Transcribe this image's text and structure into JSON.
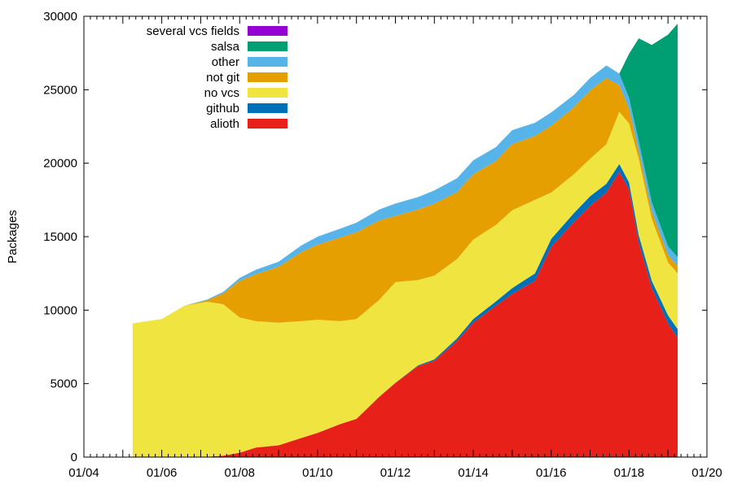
{
  "chart_data": {
    "type": "area",
    "stacked": true,
    "ylabel": "Packages",
    "xlabel": "",
    "ylim": [
      0,
      30000
    ],
    "xlim": [
      "2004-01",
      "2020-01"
    ],
    "y_ticks": [
      0,
      5000,
      10000,
      15000,
      20000,
      25000,
      30000
    ],
    "x_ticks": [
      "01/04",
      "01/06",
      "01/08",
      "01/10",
      "01/12",
      "01/14",
      "01/16",
      "01/18",
      "01/20"
    ],
    "grid": false,
    "legend_position": "top-left",
    "x": [
      "2005-04",
      "2006-01",
      "2006-08",
      "2007-03",
      "2007-08",
      "2008-01",
      "2008-06",
      "2009-01",
      "2009-08",
      "2010-01",
      "2010-08",
      "2011-01",
      "2011-08",
      "2012-01",
      "2012-08",
      "2013-01",
      "2013-08",
      "2014-01",
      "2014-08",
      "2015-01",
      "2015-08",
      "2016-01",
      "2016-08",
      "2017-01",
      "2017-06",
      "2017-10",
      "2018-01",
      "2018-04",
      "2018-08",
      "2019-01",
      "2019-04"
    ],
    "series": [
      {
        "name": "alioth",
        "color": "#e8201a",
        "values": [
          0,
          0,
          0,
          20,
          100,
          300,
          650,
          800,
          1300,
          1650,
          2250,
          2600,
          4100,
          5050,
          6200,
          6550,
          7900,
          9150,
          10300,
          11100,
          12000,
          14300,
          16000,
          17100,
          18000,
          19400,
          18200,
          14600,
          11500,
          9100,
          8100
        ]
      },
      {
        "name": "github",
        "color": "#0071b8",
        "values": [
          0,
          0,
          0,
          0,
          0,
          0,
          0,
          0,
          0,
          0,
          0,
          0,
          0,
          10,
          50,
          100,
          180,
          250,
          300,
          400,
          500,
          550,
          600,
          650,
          600,
          550,
          500,
          500,
          500,
          550,
          600
        ]
      },
      {
        "name": "no vcs",
        "color": "#f0e440",
        "values": [
          9100,
          9400,
          10300,
          10550,
          10300,
          9200,
          8600,
          8350,
          7950,
          7700,
          7000,
          6800,
          6600,
          6850,
          5800,
          5700,
          5400,
          5400,
          5200,
          5300,
          5000,
          3150,
          2650,
          2550,
          2700,
          3550,
          4000,
          5200,
          4200,
          3600,
          3800
        ]
      },
      {
        "name": "not git",
        "color": "#e59f00",
        "values": [
          0,
          0,
          0,
          100,
          750,
          2500,
          3200,
          3800,
          4700,
          5100,
          5700,
          5900,
          5400,
          4500,
          4800,
          4900,
          4550,
          4450,
          4350,
          4500,
          4350,
          4550,
          4550,
          4650,
          4500,
          1800,
          1000,
          500,
          500,
          500,
          500
        ]
      },
      {
        "name": "other",
        "color": "#56b4e9",
        "values": [
          0,
          0,
          0,
          50,
          100,
          200,
          300,
          350,
          450,
          550,
          600,
          650,
          750,
          850,
          850,
          900,
          950,
          950,
          950,
          950,
          900,
          900,
          850,
          850,
          850,
          800,
          750,
          700,
          650,
          600,
          600
        ]
      },
      {
        "name": "salsa",
        "color": "#009e73",
        "values": [
          0,
          0,
          0,
          0,
          0,
          0,
          0,
          0,
          0,
          0,
          0,
          0,
          0,
          0,
          0,
          0,
          0,
          0,
          0,
          0,
          0,
          0,
          0,
          0,
          0,
          0,
          3000,
          7000,
          10700,
          14400,
          15900
        ]
      },
      {
        "name": "several vcs fields",
        "color": "#9400d3",
        "values": [
          0,
          0,
          0,
          0,
          0,
          0,
          0,
          0,
          0,
          0,
          0,
          0,
          0,
          0,
          0,
          0,
          0,
          0,
          0,
          0,
          0,
          0,
          0,
          0,
          0,
          0,
          0,
          0,
          0,
          0,
          0
        ]
      }
    ]
  }
}
